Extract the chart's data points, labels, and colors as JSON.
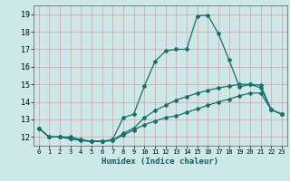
{
  "title": "",
  "xlabel": "Humidex (Indice chaleur)",
  "bg_color": "#cce8e8",
  "grid_color": "#e89898",
  "line_color": "#1a6e6e",
  "xlim": [
    -0.5,
    23.5
  ],
  "ylim": [
    11.5,
    19.5
  ],
  "xticks": [
    0,
    1,
    2,
    3,
    4,
    5,
    6,
    7,
    8,
    9,
    10,
    11,
    12,
    13,
    14,
    15,
    16,
    17,
    18,
    19,
    20,
    21,
    22,
    23
  ],
  "yticks": [
    12,
    13,
    14,
    15,
    16,
    17,
    18,
    19
  ],
  "line1_x": [
    0,
    1,
    2,
    3,
    4,
    5,
    6,
    7,
    8,
    9,
    10,
    11,
    12,
    13,
    14,
    15,
    16,
    17,
    18,
    19,
    20,
    21,
    22,
    23
  ],
  "line1_y": [
    12.5,
    12.0,
    12.0,
    11.9,
    11.8,
    11.75,
    11.75,
    11.85,
    13.1,
    13.3,
    14.9,
    16.3,
    16.9,
    17.0,
    17.0,
    18.9,
    18.95,
    17.9,
    16.4,
    14.85,
    15.0,
    14.95,
    13.55,
    13.3
  ],
  "line2_x": [
    0,
    1,
    2,
    3,
    4,
    5,
    6,
    7,
    8,
    9,
    10,
    11,
    12,
    13,
    14,
    15,
    16,
    17,
    18,
    19,
    20,
    21,
    22,
    23
  ],
  "line2_y": [
    12.5,
    12.0,
    12.0,
    12.0,
    11.85,
    11.75,
    11.75,
    11.8,
    12.2,
    12.5,
    13.1,
    13.5,
    13.8,
    14.1,
    14.3,
    14.5,
    14.65,
    14.8,
    14.9,
    15.0,
    15.0,
    14.8,
    13.55,
    13.3
  ],
  "line3_x": [
    0,
    1,
    2,
    3,
    4,
    5,
    6,
    7,
    8,
    9,
    10,
    11,
    12,
    13,
    14,
    15,
    16,
    17,
    18,
    19,
    20,
    21,
    22,
    23
  ],
  "line3_y": [
    12.5,
    12.0,
    12.0,
    11.9,
    11.8,
    11.75,
    11.75,
    11.8,
    12.1,
    12.4,
    12.7,
    12.9,
    13.1,
    13.2,
    13.4,
    13.6,
    13.8,
    14.0,
    14.15,
    14.35,
    14.5,
    14.5,
    13.55,
    13.3
  ]
}
